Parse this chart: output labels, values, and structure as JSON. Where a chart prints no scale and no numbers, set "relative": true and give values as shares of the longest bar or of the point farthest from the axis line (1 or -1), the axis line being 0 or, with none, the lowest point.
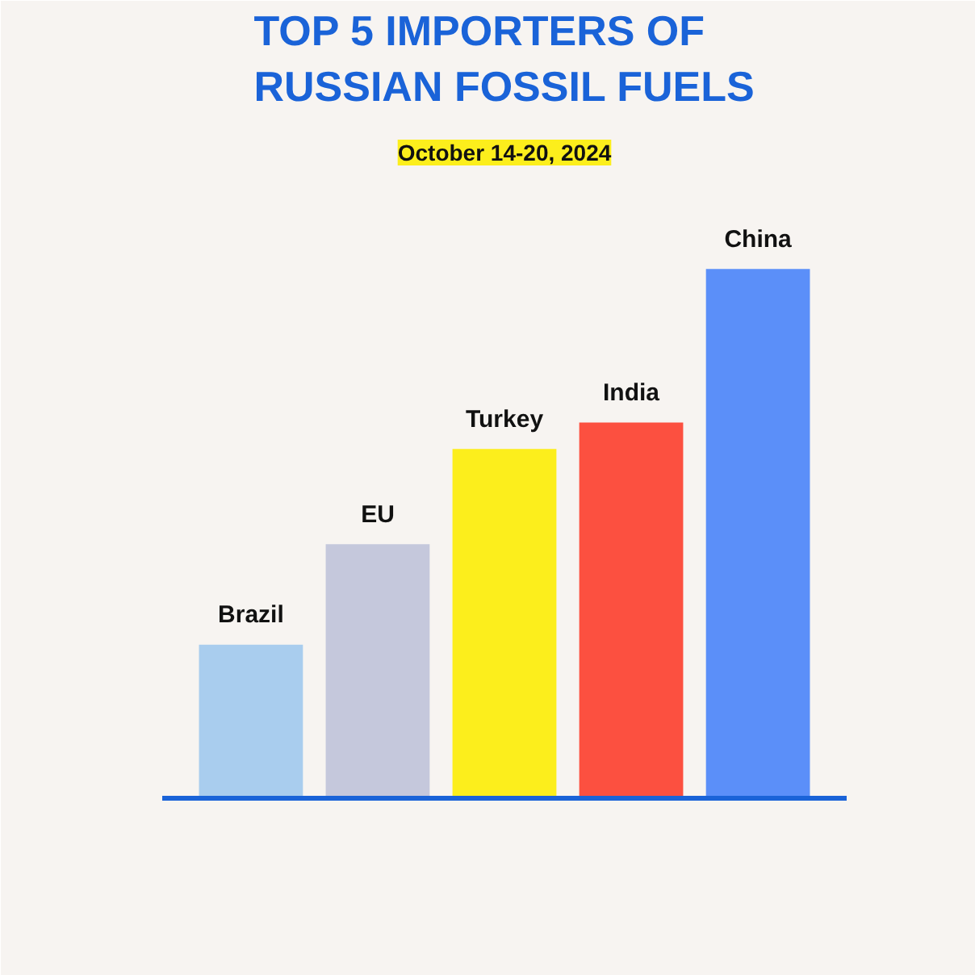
{
  "chart_data": {
    "type": "bar",
    "title": "TOP 5 IMPORTERS OF\nRUSSIAN FOSSIL FUELS",
    "subtitle": "October 14-20, 2024",
    "categories": [
      "Brazil",
      "EU",
      "Turkey",
      "India",
      "China"
    ],
    "values": [
      0.29,
      0.48,
      0.66,
      0.71,
      1
    ],
    "colors": [
      "#a9cdee",
      "#c5c8dc",
      "#fcee1c",
      "#fc5040",
      "#5b8ff9"
    ],
    "relative": true,
    "grid": false
  }
}
